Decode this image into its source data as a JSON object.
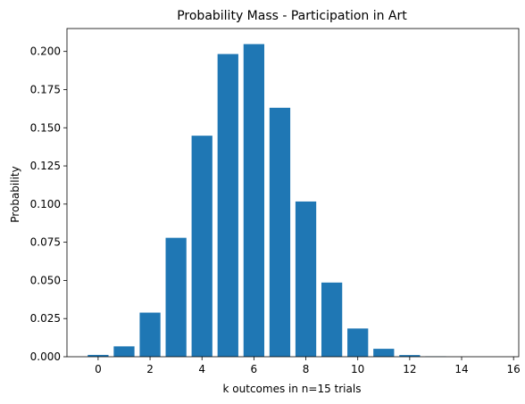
{
  "chart_data": {
    "type": "bar",
    "title": "Probability Mass - Participation in Art",
    "xlabel": "k outcomes in n=15 trials",
    "ylabel": "Probability",
    "x": [
      0,
      1,
      2,
      3,
      4,
      5,
      6,
      7,
      8,
      9,
      10,
      11,
      12,
      13,
      14,
      15
    ],
    "values": [
      0.0012,
      0.0068,
      0.0289,
      0.0779,
      0.1448,
      0.1983,
      0.2048,
      0.1631,
      0.1017,
      0.0486,
      0.0185,
      0.0052,
      0.0011,
      0.0002,
      0.0,
      0.0
    ],
    "xlim": [
      -1.2,
      16.2
    ],
    "ylim": [
      0,
      0.215
    ],
    "xticks": [
      0,
      2,
      4,
      6,
      8,
      10,
      12,
      14,
      16
    ],
    "xtick_labels": [
      "0",
      "2",
      "4",
      "6",
      "8",
      "10",
      "12",
      "14",
      "16"
    ],
    "yticks": [
      0,
      0.025,
      0.05,
      0.075,
      0.1,
      0.125,
      0.15,
      0.175,
      0.2
    ],
    "ytick_labels": [
      "0.000",
      "0.025",
      "0.050",
      "0.075",
      "0.100",
      "0.125",
      "0.150",
      "0.175",
      "0.200"
    ],
    "bar_width": 0.8,
    "bar_color": "#1f77b4",
    "grid": false,
    "legend": "none"
  }
}
